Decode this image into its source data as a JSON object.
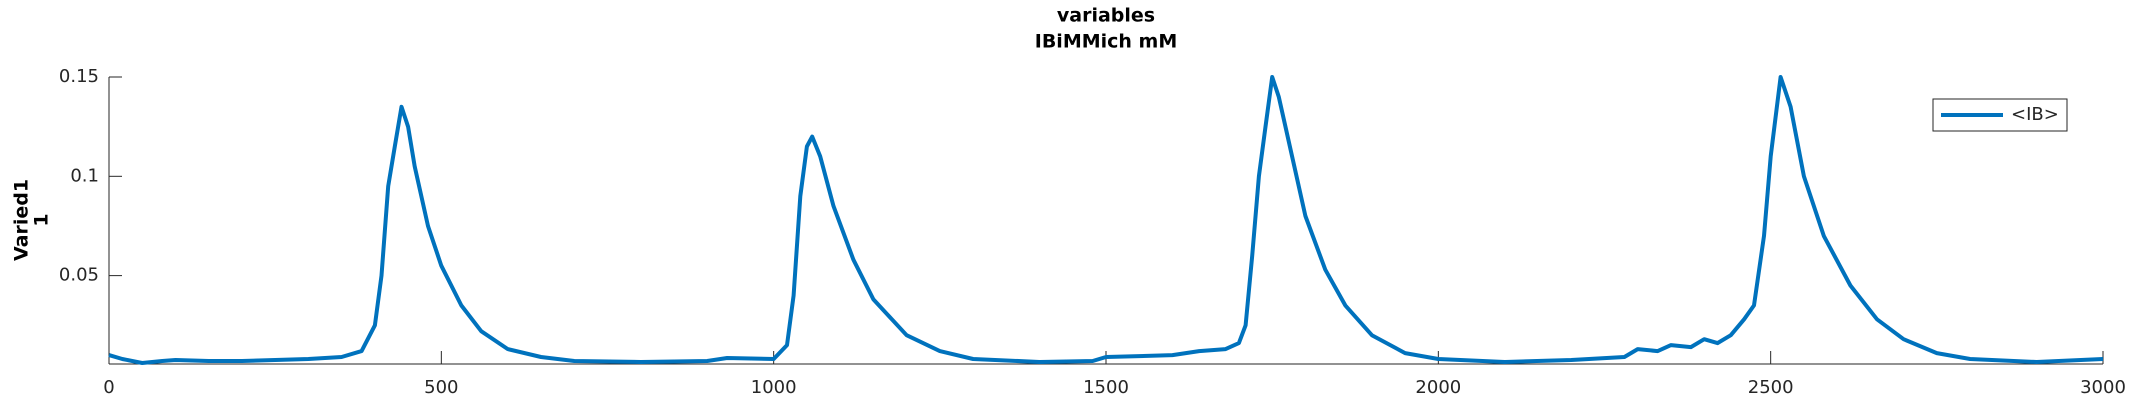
{
  "chart_data": {
    "type": "line",
    "title": "variables",
    "subtitle": "IBiMMich mM",
    "ylabel": [
      "Varied1",
      "1"
    ],
    "x": [
      0,
      20,
      50,
      80,
      100,
      150,
      200,
      250,
      300,
      350,
      380,
      400,
      410,
      420,
      430,
      440,
      450,
      460,
      480,
      500,
      530,
      560,
      600,
      650,
      700,
      800,
      900,
      930,
      1000,
      1020,
      1030,
      1040,
      1050,
      1058,
      1070,
      1090,
      1120,
      1150,
      1200,
      1250,
      1300,
      1400,
      1480,
      1500,
      1550,
      1600,
      1640,
      1680,
      1700,
      1710,
      1720,
      1730,
      1740,
      1750,
      1760,
      1780,
      1800,
      1830,
      1860,
      1900,
      1950,
      2000,
      2100,
      2200,
      2280,
      2300,
      2330,
      2350,
      2380,
      2400,
      2420,
      2440,
      2460,
      2475,
      2490,
      2500,
      2515,
      2530,
      2550,
      2580,
      2620,
      2660,
      2700,
      2750,
      2800,
      2900,
      3000
    ],
    "series": [
      {
        "name": "<IB>",
        "color": "#0072bd",
        "values": [
          0.01,
          0.008,
          0.006,
          0.007,
          0.0075,
          0.007,
          0.007,
          0.0075,
          0.008,
          0.009,
          0.012,
          0.025,
          0.05,
          0.095,
          0.115,
          0.135,
          0.125,
          0.105,
          0.075,
          0.055,
          0.035,
          0.022,
          0.013,
          0.009,
          0.007,
          0.0065,
          0.007,
          0.0085,
          0.008,
          0.015,
          0.04,
          0.09,
          0.115,
          0.12,
          0.11,
          0.085,
          0.058,
          0.038,
          0.02,
          0.012,
          0.008,
          0.0065,
          0.007,
          0.009,
          0.0095,
          0.01,
          0.012,
          0.013,
          0.016,
          0.025,
          0.06,
          0.1,
          0.125,
          0.15,
          0.14,
          0.11,
          0.08,
          0.053,
          0.035,
          0.02,
          0.011,
          0.008,
          0.0065,
          0.0075,
          0.009,
          0.013,
          0.012,
          0.015,
          0.014,
          0.018,
          0.016,
          0.02,
          0.028,
          0.035,
          0.07,
          0.11,
          0.15,
          0.135,
          0.1,
          0.07,
          0.045,
          0.028,
          0.018,
          0.011,
          0.008,
          0.0065,
          0.008
        ]
      }
    ],
    "xlim": [
      0,
      3000
    ],
    "xticks": [
      0,
      500,
      1000,
      1500,
      2000,
      2500,
      3000
    ],
    "ylim": [
      0.0055,
      0.15
    ],
    "yticks": [
      0.05,
      0.1,
      0.15
    ],
    "legend": "upper right",
    "grid": false
  }
}
